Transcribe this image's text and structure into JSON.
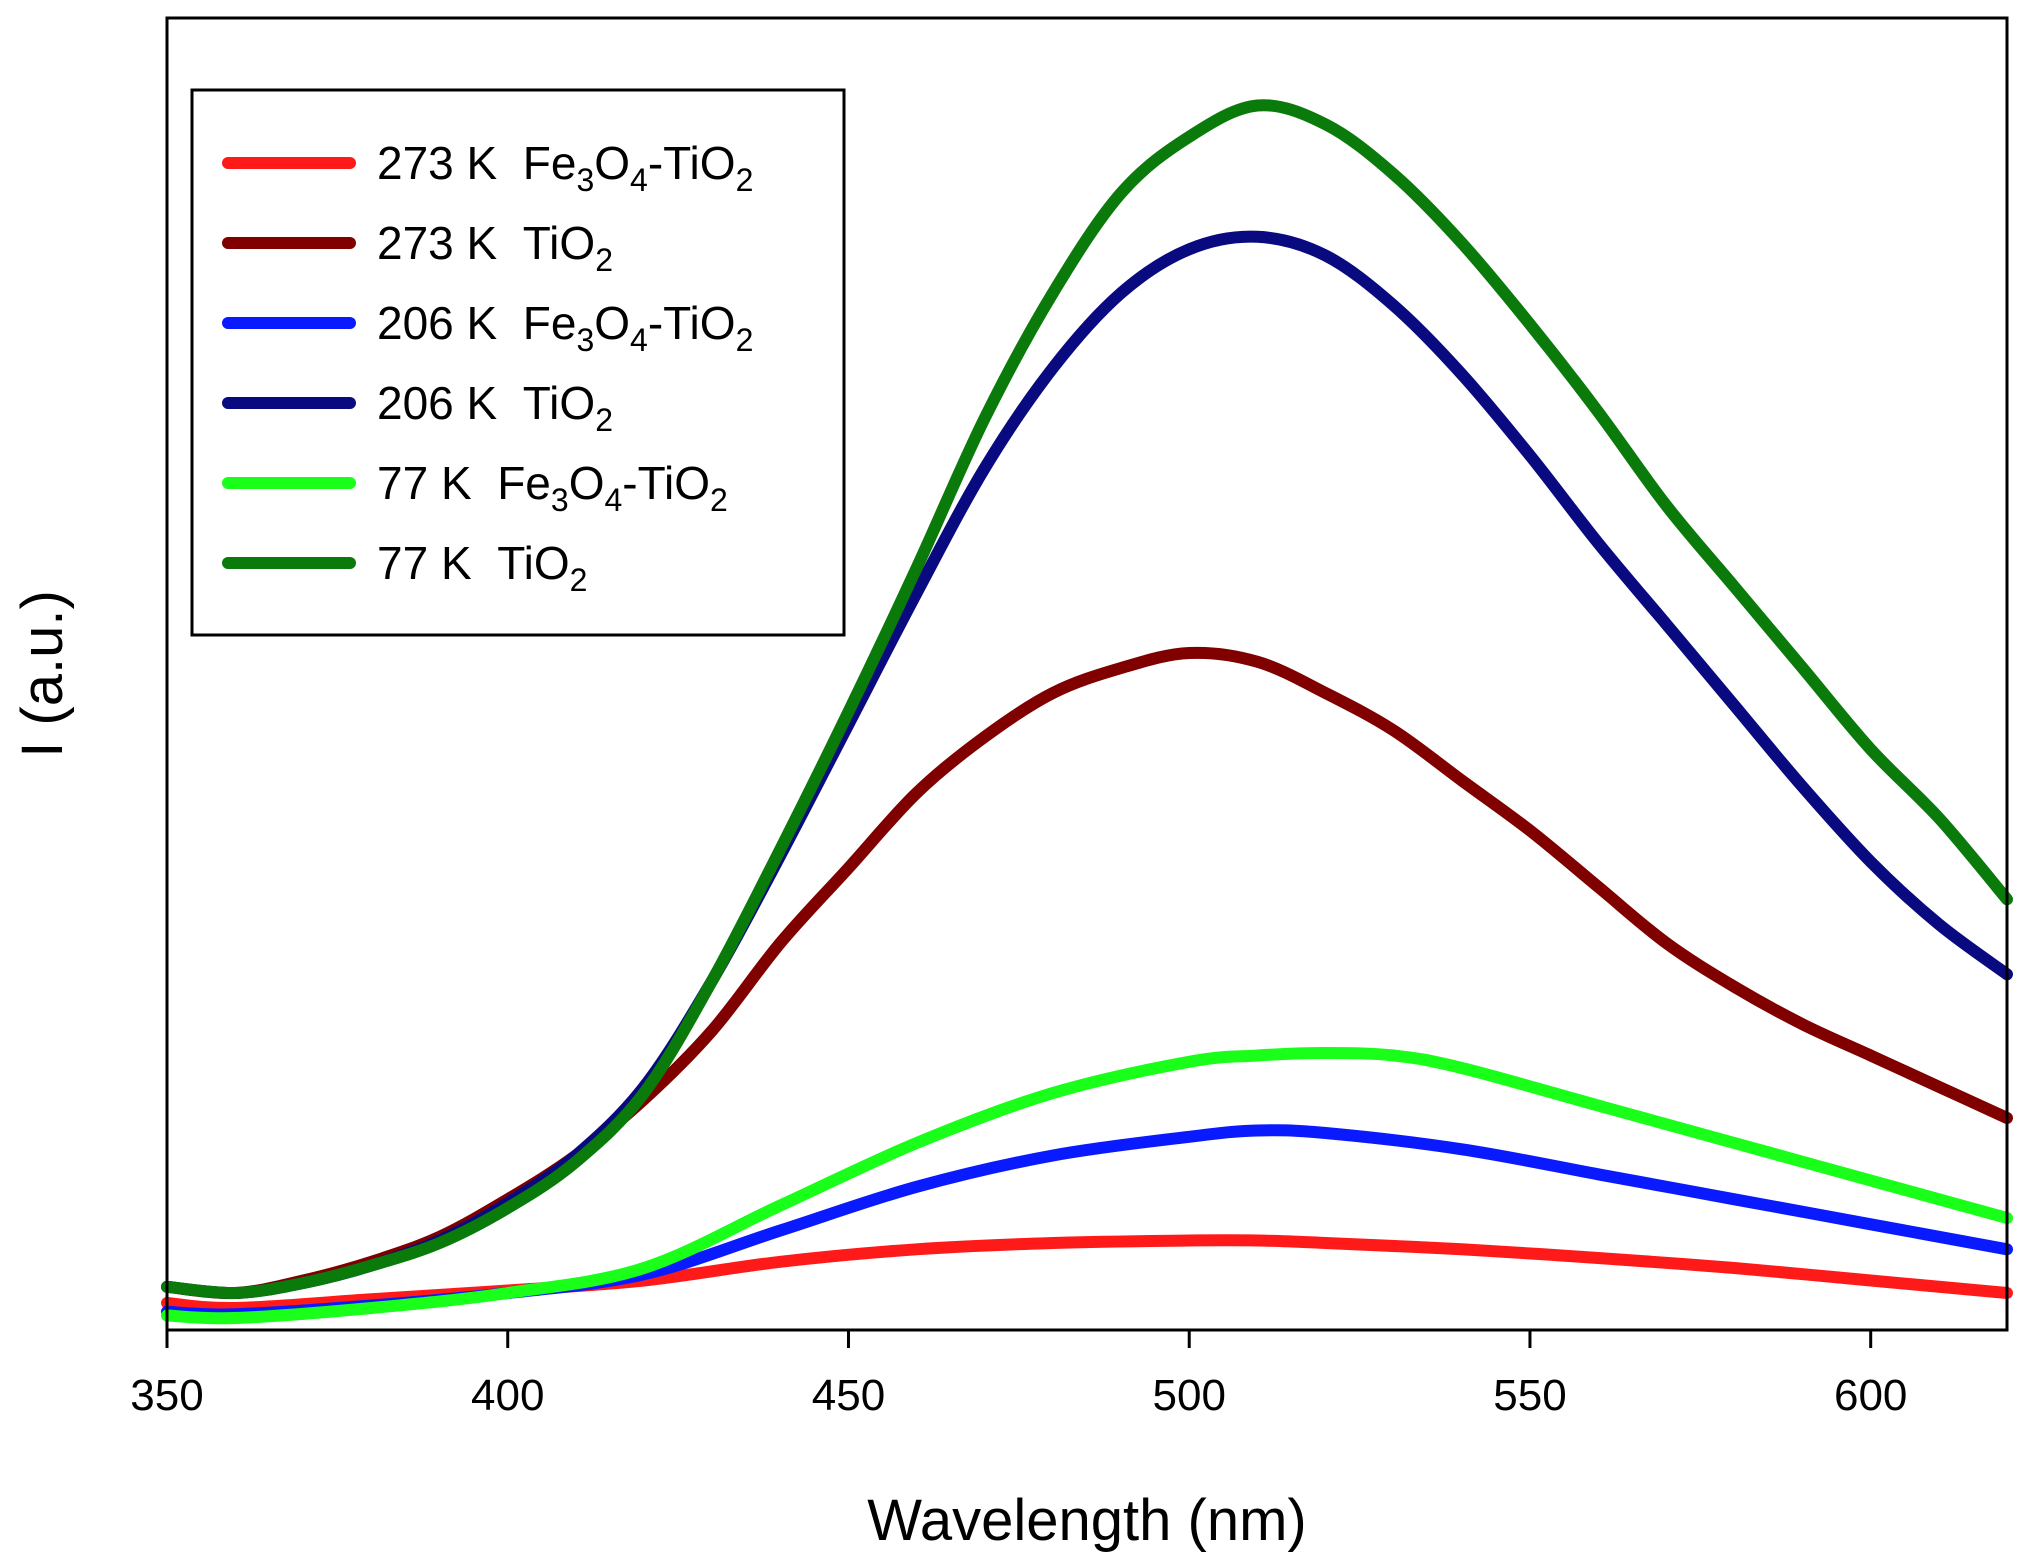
{
  "chart_data": {
    "type": "line",
    "title": "",
    "xlabel": "Wavelength (nm)",
    "ylabel": "I (a.u.)",
    "xlim": [
      350,
      620
    ],
    "ylim": [
      0,
      1000
    ],
    "xticks": [
      350,
      400,
      450,
      500,
      550,
      600
    ],
    "yticks_shown": false,
    "legend_position": "top-left",
    "series": [
      {
        "name": "273 K Fe3O4-TiO2",
        "label_temp": "273 K",
        "label_parts": [
          [
            "Fe",
            ""
          ],
          [
            "3",
            "sub"
          ],
          [
            "O",
            ""
          ],
          [
            "4",
            "sub"
          ],
          [
            "-TiO",
            ""
          ],
          [
            "2",
            "sub"
          ]
        ],
        "color": "#ff1a1a",
        "x": [
          350,
          360,
          380,
          400,
          420,
          440,
          460,
          480,
          500,
          510,
          520,
          540,
          560,
          580,
          600,
          620
        ],
        "y": [
          12,
          8,
          15,
          22,
          30,
          45,
          55,
          60,
          62,
          62,
          60,
          55,
          48,
          40,
          30,
          20
        ]
      },
      {
        "name": "273 K TiO2",
        "label_temp": "273 K",
        "label_parts": [
          [
            "TiO",
            ""
          ],
          [
            "2",
            "sub"
          ]
        ],
        "color": "#800000",
        "x": [
          350,
          360,
          370,
          380,
          390,
          400,
          410,
          420,
          430,
          440,
          450,
          460,
          470,
          480,
          490,
          500,
          510,
          520,
          530,
          540,
          550,
          560,
          570,
          580,
          590,
          600,
          610,
          620
        ],
        "y": [
          25,
          20,
          30,
          45,
          65,
          95,
          130,
          175,
          230,
          300,
          360,
          420,
          465,
          500,
          520,
          532,
          525,
          500,
          470,
          430,
          390,
          345,
          300,
          265,
          235,
          210,
          185,
          160
        ]
      },
      {
        "name": "206 K Fe3O4-TiO2",
        "label_temp": "206 K",
        "label_parts": [
          [
            "Fe",
            ""
          ],
          [
            "3",
            "sub"
          ],
          [
            "O",
            ""
          ],
          [
            "4",
            "sub"
          ],
          [
            "-TiO",
            ""
          ],
          [
            "2",
            "sub"
          ]
        ],
        "color": "#0a1aff",
        "x": [
          350,
          360,
          380,
          400,
          420,
          440,
          460,
          480,
          500,
          510,
          520,
          540,
          560,
          580,
          600,
          620
        ],
        "y": [
          5,
          3,
          10,
          20,
          35,
          70,
          105,
          130,
          145,
          150,
          148,
          135,
          115,
          95,
          75,
          55
        ]
      },
      {
        "name": "206 K TiO2",
        "label_temp": "206 K",
        "label_parts": [
          [
            "TiO",
            ""
          ],
          [
            "2",
            "sub"
          ]
        ],
        "color": "#0a0a80",
        "x": [
          350,
          360,
          370,
          380,
          390,
          400,
          410,
          420,
          430,
          440,
          450,
          460,
          470,
          480,
          490,
          500,
          510,
          520,
          530,
          540,
          550,
          560,
          570,
          580,
          590,
          600,
          610,
          620
        ],
        "y": [
          25,
          20,
          28,
          42,
          62,
          92,
          130,
          185,
          270,
          370,
          475,
          580,
          680,
          760,
          820,
          855,
          865,
          850,
          810,
          755,
          690,
          620,
          555,
          490,
          425,
          365,
          315,
          275
        ]
      },
      {
        "name": "77 K Fe3O4-TiO2",
        "label_temp": "77 K",
        "label_parts": [
          [
            "Fe",
            ""
          ],
          [
            "3",
            "sub"
          ],
          [
            "O",
            ""
          ],
          [
            "4",
            "sub"
          ],
          [
            "-TiO",
            ""
          ],
          [
            "2",
            "sub"
          ]
        ],
        "color": "#19ff19",
        "x": [
          350,
          360,
          380,
          400,
          420,
          440,
          460,
          480,
          500,
          510,
          520,
          530,
          540,
          560,
          580,
          600,
          620
        ],
        "y": [
          2,
          0,
          8,
          20,
          40,
          90,
          140,
          180,
          205,
          210,
          212,
          210,
          200,
          170,
          140,
          110,
          80
        ]
      },
      {
        "name": "77 K TiO2",
        "label_temp": "77 K",
        "label_parts": [
          [
            "TiO",
            ""
          ],
          [
            "2",
            "sub"
          ]
        ],
        "color": "#0a7a0a",
        "x": [
          350,
          360,
          370,
          380,
          390,
          400,
          410,
          420,
          430,
          440,
          450,
          460,
          470,
          480,
          490,
          500,
          510,
          520,
          530,
          540,
          550,
          560,
          570,
          580,
          590,
          600,
          610,
          620
        ],
        "y": [
          25,
          20,
          28,
          42,
          60,
          88,
          125,
          180,
          270,
          375,
          485,
          600,
          720,
          820,
          900,
          945,
          970,
          955,
          915,
          860,
          795,
          725,
          650,
          585,
          520,
          455,
          400,
          335
        ]
      }
    ]
  }
}
